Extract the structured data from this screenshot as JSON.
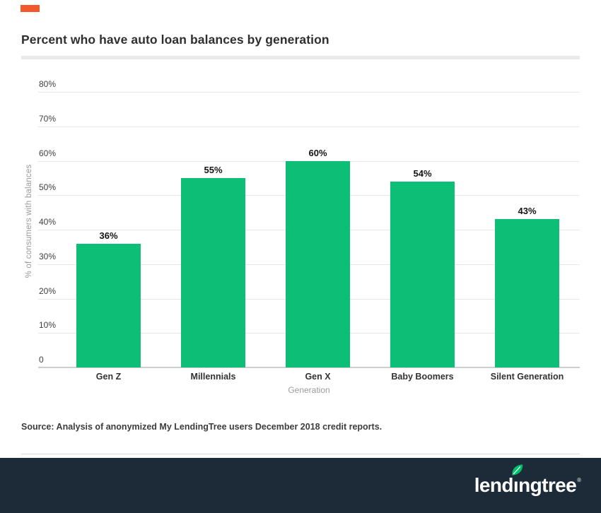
{
  "accent_mark_color": "#f0592b",
  "title": "Percent who have auto loan balances by generation",
  "chart_data": {
    "type": "bar",
    "categories": [
      "Gen Z",
      "Millennials",
      "Gen X",
      "Baby Boomers",
      "Silent Generation"
    ],
    "values": [
      36,
      55,
      60,
      54,
      43
    ],
    "value_labels": [
      "36%",
      "55%",
      "60%",
      "54%",
      "43%"
    ],
    "title": "Percent who have auto loan balances by generation",
    "xlabel": "Generation",
    "ylabel": "% of consumers with balances",
    "ylim": [
      0,
      80
    ],
    "ytick_step": 10,
    "ytick_labels": [
      "0",
      "10%",
      "20%",
      "30%",
      "40%",
      "50%",
      "60%",
      "70%",
      "80%"
    ],
    "bar_color": "#0cbe76",
    "gridline_color": "#e7e7e7",
    "grid": true,
    "legend": false
  },
  "source_text": "Source: Analysis of anonymized My LendingTree users December 2018 credit reports.",
  "footer": {
    "logo_text": "lendingtree",
    "registered_mark": "®",
    "background_color": "#1d2b39",
    "leaf_color": "#00c06d"
  }
}
